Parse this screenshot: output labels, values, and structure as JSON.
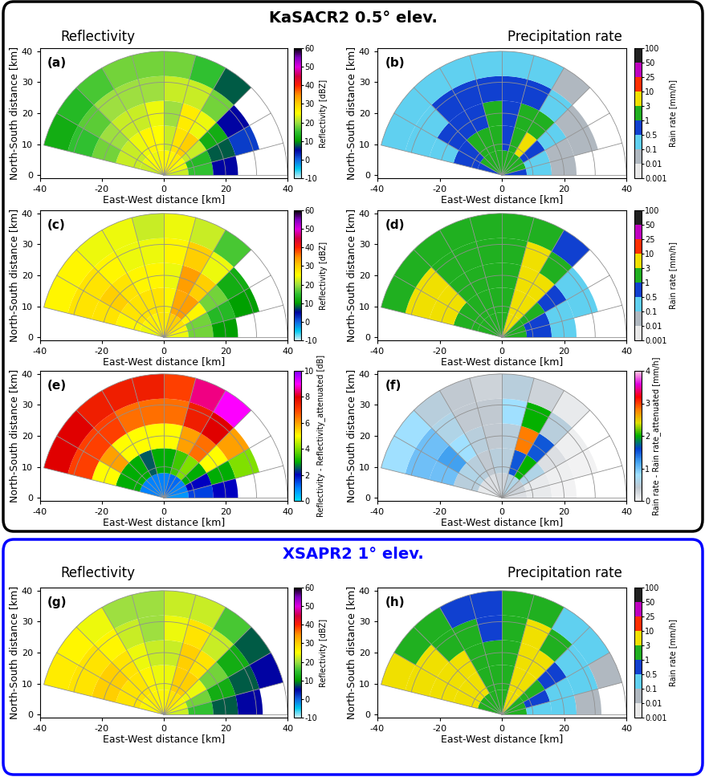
{
  "groups": [
    {
      "title": "KaSACR2 0.5° elev.",
      "color": "black",
      "headers": [
        "Reflectivity",
        "Precipitation rate"
      ]
    },
    {
      "title": "XSAPR2 1° elev.",
      "color": "blue",
      "headers": [
        "Reflectivity",
        "Precipitation rate"
      ]
    }
  ],
  "chart_data": [
    {
      "type": "heatmap",
      "label": "(a)",
      "xlabel": "East-West distance [km]",
      "ylabel": "North-South distance [km]",
      "xlim": [
        -40,
        40
      ],
      "ylim": [
        -1,
        41
      ],
      "xticks": [
        -40,
        -20,
        0,
        20,
        40
      ],
      "yticks": [
        0,
        10,
        20,
        30,
        40
      ],
      "grid": true,
      "azimuth_edges": [
        -76,
        -60,
        -45,
        -30,
        -15,
        0,
        15,
        30,
        45,
        60,
        75,
        90
      ],
      "range_edges": [
        0,
        8,
        16,
        24,
        32,
        40
      ],
      "cells": [
        [
          22,
          22,
          18,
          15,
          12
        ],
        [
          24,
          22,
          20,
          17,
          14
        ],
        [
          25,
          24,
          22,
          20,
          16
        ],
        [
          24,
          26,
          22,
          20,
          18
        ],
        [
          26,
          25,
          24,
          20,
          18
        ],
        [
          25,
          22,
          20,
          22,
          18
        ],
        [
          26,
          28,
          27,
          22,
          15
        ],
        [
          27,
          30,
          24,
          18,
          8
        ],
        [
          25,
          22,
          12,
          5,
          null
        ],
        [
          24,
          14,
          8,
          2,
          null
        ],
        [
          22,
          15,
          5,
          null,
          null
        ]
      ],
      "colorbar": {
        "label": "Reflectivity [dBZ]",
        "range": [
          -10,
          60
        ],
        "ticks": [
          -10,
          0,
          10,
          20,
          30,
          40,
          50,
          60
        ],
        "colors": [
          "#d0f0f8",
          "#00c8f0",
          "#1060e0",
          "#0000a0",
          "#00a000",
          "#30c030",
          "#a0e040",
          "#ffff00",
          "#ffd000",
          "#ff9000",
          "#ff2000",
          "#d00040",
          "#e000e0",
          "#8000c0",
          "#000000"
        ]
      }
    },
    {
      "type": "heatmap",
      "label": "(b)",
      "xlabel": "East-West distance [km]",
      "ylabel": "North-South distance [km]",
      "xlim": [
        -40,
        40
      ],
      "ylim": [
        -1,
        41
      ],
      "xticks": [
        -40,
        -20,
        0,
        20,
        40
      ],
      "yticks": [
        0,
        10,
        20,
        30,
        40
      ],
      "grid": true,
      "azimuth_edges": [
        -76,
        -60,
        -45,
        -30,
        -15,
        0,
        15,
        30,
        45,
        60,
        75,
        90
      ],
      "range_edges": [
        0,
        8,
        16,
        24,
        32,
        40
      ],
      "cells": [
        [
          0.8,
          0.6,
          0.4,
          0.2,
          0.1
        ],
        [
          1,
          0.8,
          0.5,
          0.3,
          0.15
        ],
        [
          1.2,
          1,
          0.8,
          0.5,
          0.2
        ],
        [
          1,
          1.5,
          0.8,
          0.5,
          0.3
        ],
        [
          1.5,
          1.2,
          1,
          0.5,
          0.3
        ],
        [
          1.2,
          0.8,
          0.5,
          0.8,
          0.3
        ],
        [
          1.5,
          2.5,
          2,
          0.8,
          0.2
        ],
        [
          2,
          3.5,
          1,
          0.3,
          0.05
        ],
        [
          1.5,
          0.8,
          0.1,
          0.02,
          null
        ],
        [
          1,
          0.15,
          0.05,
          0.01,
          null
        ],
        [
          0.8,
          0.2,
          0.02,
          null,
          null
        ]
      ],
      "colorbar": {
        "label": "Rain rate [mm/h]",
        "range": [
          0.001,
          100
        ],
        "ticks": [
          0.001,
          0.01,
          0.1,
          0.5,
          1,
          3,
          10,
          25,
          50,
          100
        ],
        "colors": [
          "#e8e8e8",
          "#b0b8c0",
          "#60d0f0",
          "#1040d0",
          "#20b020",
          "#f0e000",
          "#ff3000",
          "#c000c0",
          "#202020"
        ]
      }
    },
    {
      "type": "heatmap",
      "label": "(c)",
      "xlabel": "East-West distance [km]",
      "ylabel": "North-South distance [km]",
      "xlim": [
        -40,
        40
      ],
      "ylim": [
        -1,
        41
      ],
      "xticks": [
        -40,
        -20,
        0,
        20,
        40
      ],
      "yticks": [
        0,
        10,
        20,
        30,
        40
      ],
      "grid": true,
      "azimuth_edges": [
        -76,
        -60,
        -45,
        -30,
        -15,
        0,
        15,
        30,
        45,
        60,
        75,
        90
      ],
      "range_edges": [
        0,
        8,
        16,
        24,
        32,
        40
      ],
      "cells": [
        [
          24,
          26,
          28,
          28,
          26
        ],
        [
          26,
          28,
          30,
          28,
          26
        ],
        [
          27,
          28,
          28,
          26,
          24
        ],
        [
          26,
          28,
          26,
          24,
          24
        ],
        [
          28,
          28,
          26,
          24,
          22
        ],
        [
          27,
          26,
          24,
          26,
          24
        ],
        [
          30,
          33,
          34,
          30,
          22
        ],
        [
          30,
          34,
          30,
          24,
          16
        ],
        [
          28,
          26,
          18,
          12,
          null
        ],
        [
          26,
          18,
          14,
          10,
          null
        ],
        [
          24,
          18,
          10,
          null,
          null
        ]
      ],
      "colorbar": {
        "label": "Reflectivity [dBZ]",
        "range": [
          -10,
          60
        ],
        "ticks": [
          -10,
          0,
          10,
          20,
          30,
          40,
          50,
          60
        ],
        "colors": [
          "#d0f0f8",
          "#00c8f0",
          "#1060e0",
          "#0000a0",
          "#00a000",
          "#30c030",
          "#a0e040",
          "#ffff00",
          "#ffd000",
          "#ff9000",
          "#ff2000",
          "#d00040",
          "#e000e0",
          "#8000c0",
          "#000000"
        ]
      }
    },
    {
      "type": "heatmap",
      "label": "(d)",
      "xlabel": "East-West distance [km]",
      "ylabel": "North-South distance [km]",
      "xlim": [
        -40,
        40
      ],
      "ylim": [
        -1,
        41
      ],
      "xticks": [
        -40,
        -20,
        0,
        20,
        40
      ],
      "yticks": [
        0,
        10,
        20,
        30,
        40
      ],
      "grid": true,
      "azimuth_edges": [
        -76,
        -60,
        -45,
        -30,
        -15,
        0,
        15,
        30,
        45,
        60,
        75,
        90
      ],
      "range_edges": [
        0,
        8,
        16,
        24,
        32,
        40
      ],
      "cells": [
        [
          1,
          2,
          3,
          3,
          2.5
        ],
        [
          1.5,
          2.5,
          3.5,
          3,
          2.5
        ],
        [
          2,
          2.5,
          2.5,
          2,
          1.5
        ],
        [
          1.5,
          2.5,
          2,
          1.5,
          1.5
        ],
        [
          2.5,
          2.5,
          2,
          1.5,
          1
        ],
        [
          2,
          2,
          1.5,
          2,
          1.5
        ],
        [
          3.5,
          6,
          7,
          4,
          1
        ],
        [
          3.5,
          7,
          4,
          1.5,
          0.5
        ],
        [
          2.5,
          2,
          0.5,
          0.2,
          null
        ],
        [
          2,
          0.5,
          0.3,
          0.15,
          null
        ],
        [
          1.5,
          0.5,
          0.1,
          null,
          null
        ]
      ],
      "colorbar": {
        "label": "Rain rate [mm/h]",
        "range": [
          0.001,
          100
        ],
        "ticks": [
          0.001,
          0.01,
          0.1,
          0.5,
          1,
          3,
          10,
          25,
          50,
          100
        ],
        "colors": [
          "#e8e8e8",
          "#b0b8c0",
          "#60d0f0",
          "#1040d0",
          "#20b020",
          "#f0e000",
          "#ff3000",
          "#c000c0",
          "#202020"
        ]
      }
    },
    {
      "type": "heatmap",
      "label": "(e)",
      "xlabel": "East-West distance [km]",
      "ylabel": "North-South distance [km]",
      "xlim": [
        -40,
        40
      ],
      "ylim": [
        -1,
        41
      ],
      "xticks": [
        -40,
        -20,
        0,
        20,
        40
      ],
      "yticks": [
        0,
        10,
        20,
        30,
        40
      ],
      "grid": true,
      "azimuth_edges": [
        -76,
        -60,
        -45,
        -30,
        -15,
        0,
        15,
        30,
        45,
        60,
        75,
        90
      ],
      "range_edges": [
        0,
        8,
        16,
        24,
        32,
        40
      ],
      "cells": [
        [
          1,
          3,
          5,
          7,
          8
        ],
        [
          1,
          3,
          6,
          7,
          8
        ],
        [
          1,
          3,
          5,
          7,
          7.5
        ],
        [
          1,
          2.5,
          5,
          6.5,
          7.5
        ],
        [
          1,
          3,
          5,
          6.5,
          7.5
        ],
        [
          1,
          3,
          5,
          6.5,
          7
        ],
        [
          1.2,
          3.5,
          6,
          7.5,
          8.5
        ],
        [
          1.2,
          4,
          6.5,
          8,
          9
        ],
        [
          1,
          3,
          5,
          6,
          null
        ],
        [
          1,
          2,
          3,
          4,
          null
        ],
        [
          0.8,
          1.5,
          2,
          null,
          null
        ]
      ],
      "colorbar": {
        "label": "Reflectivity - Reflectivity_attenuated [dB]",
        "range": [
          0,
          10
        ],
        "ticks": [
          0,
          2,
          4,
          6,
          8,
          10
        ],
        "colors": [
          "#00e0ff",
          "#0080ff",
          "#0000c0",
          "#00b000",
          "#80e000",
          "#ffff00",
          "#ffa000",
          "#ff4000",
          "#e00000",
          "#ff00ff",
          "#8000ff"
        ]
      }
    },
    {
      "type": "heatmap",
      "label": "(f)",
      "xlabel": "East-West distance [km]",
      "ylabel": "North-South distance [km]",
      "xlim": [
        -40,
        40
      ],
      "ylim": [
        -1,
        41
      ],
      "xticks": [
        -40,
        -20,
        0,
        20,
        40
      ],
      "yticks": [
        0,
        10,
        20,
        30,
        40
      ],
      "grid": true,
      "azimuth_edges": [
        -76,
        -60,
        -45,
        -30,
        -15,
        0,
        15,
        30,
        45,
        60,
        75,
        90
      ],
      "range_edges": [
        0,
        8,
        16,
        24,
        32,
        40
      ],
      "cells": [
        [
          0.1,
          0.5,
          1,
          1,
          0.8
        ],
        [
          0.2,
          0.6,
          1.2,
          1,
          0.8
        ],
        [
          0.2,
          0.5,
          0.8,
          0.6,
          0.5
        ],
        [
          0.2,
          0.4,
          0.5,
          0.4,
          0.4
        ],
        [
          0.3,
          0.5,
          0.4,
          0.4,
          0.3
        ],
        [
          0.3,
          0.5,
          0.5,
          0.8,
          0.5
        ],
        [
          0.5,
          1.5,
          2.8,
          2,
          0.3
        ],
        [
          0.6,
          2,
          1.5,
          0.5,
          0.1
        ],
        [
          0.4,
          0.6,
          0.2,
          0.05,
          null
        ],
        [
          0.3,
          0.1,
          0.05,
          0.02,
          null
        ],
        [
          0.2,
          0.1,
          0.02,
          null,
          null
        ]
      ],
      "colorbar": {
        "label": "Rain rate - Rain rate_attenuated [mm/h]",
        "range": [
          0,
          4
        ],
        "ticks": [
          0,
          1,
          2,
          3,
          4
        ],
        "colors": [
          "#f4f4f4",
          "#c0c8d0",
          "#a0e0ff",
          "#40a0f0",
          "#0040d0",
          "#00b000",
          "#e0e000",
          "#ff8000",
          "#ff0000",
          "#e000e0",
          "#ffd0e0"
        ]
      }
    },
    {
      "type": "heatmap",
      "label": "(g)",
      "xlabel": "East-West distance [km]",
      "ylabel": "North-South distance [km]",
      "xlim": [
        -40,
        40
      ],
      "ylim": [
        -1,
        41
      ],
      "xticks": [
        -40,
        -20,
        0,
        20,
        40
      ],
      "yticks": [
        0,
        10,
        20,
        30,
        40
      ],
      "grid": true,
      "azimuth_edges": [
        -76,
        -60,
        -45,
        -30,
        -15,
        0,
        15,
        30,
        45,
        60,
        75,
        90
      ],
      "range_edges": [
        0,
        8,
        16,
        24,
        32,
        40
      ],
      "cells": [
        [
          26,
          28,
          30,
          28,
          27
        ],
        [
          26,
          28,
          30,
          28,
          26
        ],
        [
          27,
          28,
          28,
          26,
          24
        ],
        [
          26,
          26,
          24,
          22,
          20
        ],
        [
          26,
          24,
          22,
          20,
          20
        ],
        [
          26,
          24,
          22,
          24,
          22
        ],
        [
          28,
          30,
          30,
          28,
          22
        ],
        [
          28,
          30,
          28,
          22,
          16
        ],
        [
          26,
          24,
          18,
          12,
          8
        ],
        [
          24,
          18,
          12,
          8,
          5
        ],
        [
          22,
          15,
          8,
          5,
          null
        ]
      ],
      "colorbar": {
        "label": "Reflectivity [dBZ]",
        "range": [
          -10,
          60
        ],
        "ticks": [
          -10,
          0,
          10,
          20,
          30,
          40,
          50,
          60
        ],
        "colors": [
          "#d0f0f8",
          "#00c8f0",
          "#1060e0",
          "#0000a0",
          "#00a000",
          "#30c030",
          "#a0e040",
          "#ffff00",
          "#ffd000",
          "#ff9000",
          "#ff2000",
          "#d00040",
          "#e000e0",
          "#8000c0",
          "#000000"
        ]
      }
    },
    {
      "type": "heatmap",
      "label": "(h)",
      "xlabel": "East-West distance [km]",
      "ylabel": "North-South distance [km]",
      "xlim": [
        -40,
        40
      ],
      "ylim": [
        -1,
        41
      ],
      "xticks": [
        -40,
        -20,
        0,
        20,
        40
      ],
      "yticks": [
        0,
        10,
        20,
        30,
        40
      ],
      "grid": true,
      "azimuth_edges": [
        -76,
        -60,
        -45,
        -30,
        -15,
        0,
        15,
        30,
        45,
        60,
        75,
        90
      ],
      "range_edges": [
        0,
        8,
        16,
        24,
        32,
        40
      ],
      "cells": [
        [
          2,
          3,
          4,
          3.5,
          3
        ],
        [
          2,
          3,
          4,
          3,
          2.5
        ],
        [
          2.5,
          3,
          3,
          2.5,
          1.5
        ],
        [
          2,
          2,
          1.5,
          1,
          0.8
        ],
        [
          2,
          1.5,
          1,
          0.8,
          0.8
        ],
        [
          2,
          1.5,
          1,
          1.5,
          1
        ],
        [
          3,
          4,
          4,
          3,
          1
        ],
        [
          3,
          4,
          3,
          1,
          0.4
        ],
        [
          2,
          1.5,
          0.5,
          0.2,
          0.1
        ],
        [
          1.5,
          0.5,
          0.2,
          0.1,
          0.05
        ],
        [
          1,
          0.3,
          0.1,
          0.05,
          null
        ]
      ],
      "colorbar": {
        "label": "Rain rate [mm/h]",
        "range": [
          0.001,
          100
        ],
        "ticks": [
          0.001,
          0.01,
          0.1,
          0.5,
          1,
          3,
          10,
          25,
          50,
          100
        ],
        "colors": [
          "#e8e8e8",
          "#b0b8c0",
          "#60d0f0",
          "#1040d0",
          "#20b020",
          "#f0e000",
          "#ff3000",
          "#c000c0",
          "#202020"
        ]
      }
    }
  ]
}
